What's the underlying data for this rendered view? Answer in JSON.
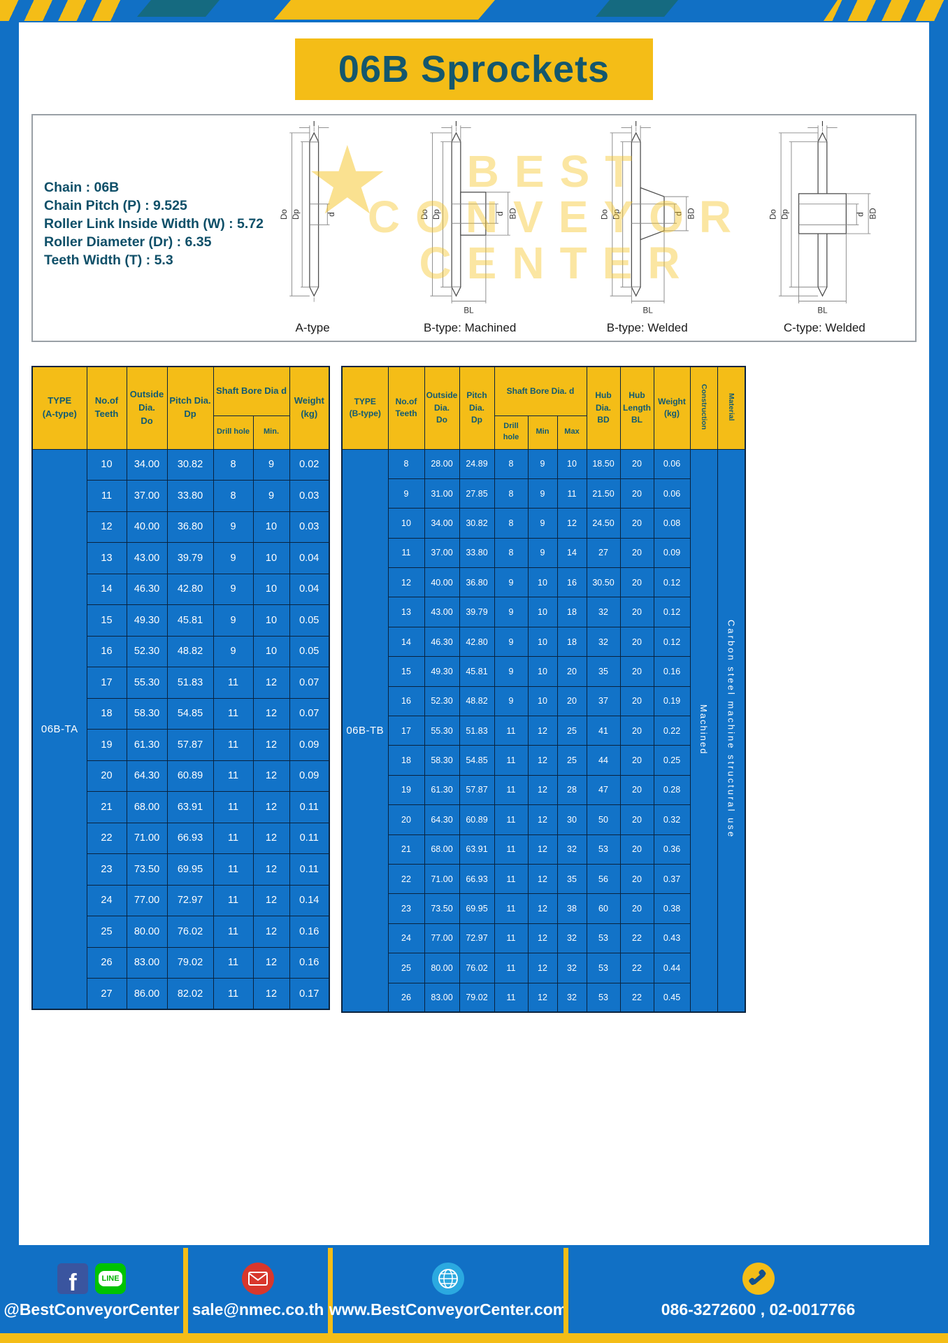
{
  "page": {
    "title": "06B Sprockets"
  },
  "specs": {
    "lines": [
      "Chain : 06B",
      "Chain Pitch (P) : 9.525",
      "Roller Link Inside Width (W) : 5.72",
      "Roller Diameter (Dr) : 6.35",
      "Teeth Width (T) : 5.3"
    ]
  },
  "watermark": {
    "lines": [
      "BEST",
      "CONVEYOR",
      "CENTER"
    ]
  },
  "diagrams": {
    "captions": [
      "A-type",
      "B-type: Machined",
      "B-type: Welded",
      "C-type: Welded"
    ],
    "dims": {
      "T": "T",
      "Do": "Do",
      "Dp": "Dp",
      "d": "d",
      "BD": "BD",
      "BL": "BL"
    }
  },
  "table_a": {
    "header": {
      "type": [
        "TYPE",
        "(A-type)"
      ],
      "teeth": [
        "No.of",
        "Teeth"
      ],
      "outside": [
        "Outside",
        "Dia.",
        "Do"
      ],
      "pitch": [
        "Pitch Dia.",
        "Dp"
      ],
      "shaft_group": "Shaft Bore Dia d",
      "drill": "Drill hole",
      "min": "Min.",
      "weight": [
        "Weight",
        "(kg)"
      ]
    },
    "type_value": "06B-TA",
    "rows": [
      [
        "10",
        "34.00",
        "30.82",
        "8",
        "9",
        "0.02"
      ],
      [
        "11",
        "37.00",
        "33.80",
        "8",
        "9",
        "0.03"
      ],
      [
        "12",
        "40.00",
        "36.80",
        "9",
        "10",
        "0.03"
      ],
      [
        "13",
        "43.00",
        "39.79",
        "9",
        "10",
        "0.04"
      ],
      [
        "14",
        "46.30",
        "42.80",
        "9",
        "10",
        "0.04"
      ],
      [
        "15",
        "49.30",
        "45.81",
        "9",
        "10",
        "0.05"
      ],
      [
        "16",
        "52.30",
        "48.82",
        "9",
        "10",
        "0.05"
      ],
      [
        "17",
        "55.30",
        "51.83",
        "11",
        "12",
        "0.07"
      ],
      [
        "18",
        "58.30",
        "54.85",
        "11",
        "12",
        "0.07"
      ],
      [
        "19",
        "61.30",
        "57.87",
        "11",
        "12",
        "0.09"
      ],
      [
        "20",
        "64.30",
        "60.89",
        "11",
        "12",
        "0.09"
      ],
      [
        "21",
        "68.00",
        "63.91",
        "11",
        "12",
        "0.11"
      ],
      [
        "22",
        "71.00",
        "66.93",
        "11",
        "12",
        "0.11"
      ],
      [
        "23",
        "73.50",
        "69.95",
        "11",
        "12",
        "0.11"
      ],
      [
        "24",
        "77.00",
        "72.97",
        "11",
        "12",
        "0.14"
      ],
      [
        "25",
        "80.00",
        "76.02",
        "11",
        "12",
        "0.16"
      ],
      [
        "26",
        "83.00",
        "79.02",
        "11",
        "12",
        "0.16"
      ],
      [
        "27",
        "86.00",
        "82.02",
        "11",
        "12",
        "0.17"
      ]
    ]
  },
  "table_b": {
    "header": {
      "type": [
        "TYPE",
        "(B-type)"
      ],
      "teeth": [
        "No.of",
        "Teeth"
      ],
      "outside": [
        "Outside",
        "Dia.",
        "Do"
      ],
      "pitch": [
        "Pitch",
        "Dia.",
        "Dp"
      ],
      "shaft_group": "Shaft Bore Dia. d",
      "drill": "Drill hole",
      "min": "Min",
      "max": "Max",
      "hub_dia": [
        "Hub",
        "Dia.",
        "BD"
      ],
      "hub_len": [
        "Hub",
        "Length",
        "BL"
      ],
      "weight": [
        "Weight",
        "(kg)"
      ],
      "construction": "Construction",
      "material": "Material"
    },
    "type_value": "06B-TB",
    "construction_value": "Machined",
    "material_value": "Carbon steel machine structural use",
    "rows": [
      [
        "8",
        "28.00",
        "24.89",
        "8",
        "9",
        "10",
        "18.50",
        "20",
        "0.06"
      ],
      [
        "9",
        "31.00",
        "27.85",
        "8",
        "9",
        "11",
        "21.50",
        "20",
        "0.06"
      ],
      [
        "10",
        "34.00",
        "30.82",
        "8",
        "9",
        "12",
        "24.50",
        "20",
        "0.08"
      ],
      [
        "11",
        "37.00",
        "33.80",
        "8",
        "9",
        "14",
        "27",
        "20",
        "0.09"
      ],
      [
        "12",
        "40.00",
        "36.80",
        "9",
        "10",
        "16",
        "30.50",
        "20",
        "0.12"
      ],
      [
        "13",
        "43.00",
        "39.79",
        "9",
        "10",
        "18",
        "32",
        "20",
        "0.12"
      ],
      [
        "14",
        "46.30",
        "42.80",
        "9",
        "10",
        "18",
        "32",
        "20",
        "0.12"
      ],
      [
        "15",
        "49.30",
        "45.81",
        "9",
        "10",
        "20",
        "35",
        "20",
        "0.16"
      ],
      [
        "16",
        "52.30",
        "48.82",
        "9",
        "10",
        "20",
        "37",
        "20",
        "0.19"
      ],
      [
        "17",
        "55.30",
        "51.83",
        "11",
        "12",
        "25",
        "41",
        "20",
        "0.22"
      ],
      [
        "18",
        "58.30",
        "54.85",
        "11",
        "12",
        "25",
        "44",
        "20",
        "0.25"
      ],
      [
        "19",
        "61.30",
        "57.87",
        "11",
        "12",
        "28",
        "47",
        "20",
        "0.28"
      ],
      [
        "20",
        "64.30",
        "60.89",
        "11",
        "12",
        "30",
        "50",
        "20",
        "0.32"
      ],
      [
        "21",
        "68.00",
        "63.91",
        "11",
        "12",
        "32",
        "53",
        "20",
        "0.36"
      ],
      [
        "22",
        "71.00",
        "66.93",
        "11",
        "12",
        "35",
        "56",
        "20",
        "0.37"
      ],
      [
        "23",
        "73.50",
        "69.95",
        "11",
        "12",
        "38",
        "60",
        "20",
        "0.38"
      ],
      [
        "24",
        "77.00",
        "72.97",
        "11",
        "12",
        "32",
        "53",
        "22",
        "0.43"
      ],
      [
        "25",
        "80.00",
        "76.02",
        "11",
        "12",
        "32",
        "53",
        "22",
        "0.44"
      ],
      [
        "26",
        "83.00",
        "79.02",
        "11",
        "12",
        "32",
        "53",
        "22",
        "0.45"
      ]
    ]
  },
  "footer": {
    "facebook_f": "f",
    "line_label": "LINE",
    "facebook_handle": "@BestConveyorCenter",
    "email": "sale@nmec.co.th",
    "website": "www.BestConveyorCenter.com",
    "phones": "086-3272600 , 02-0017766"
  }
}
